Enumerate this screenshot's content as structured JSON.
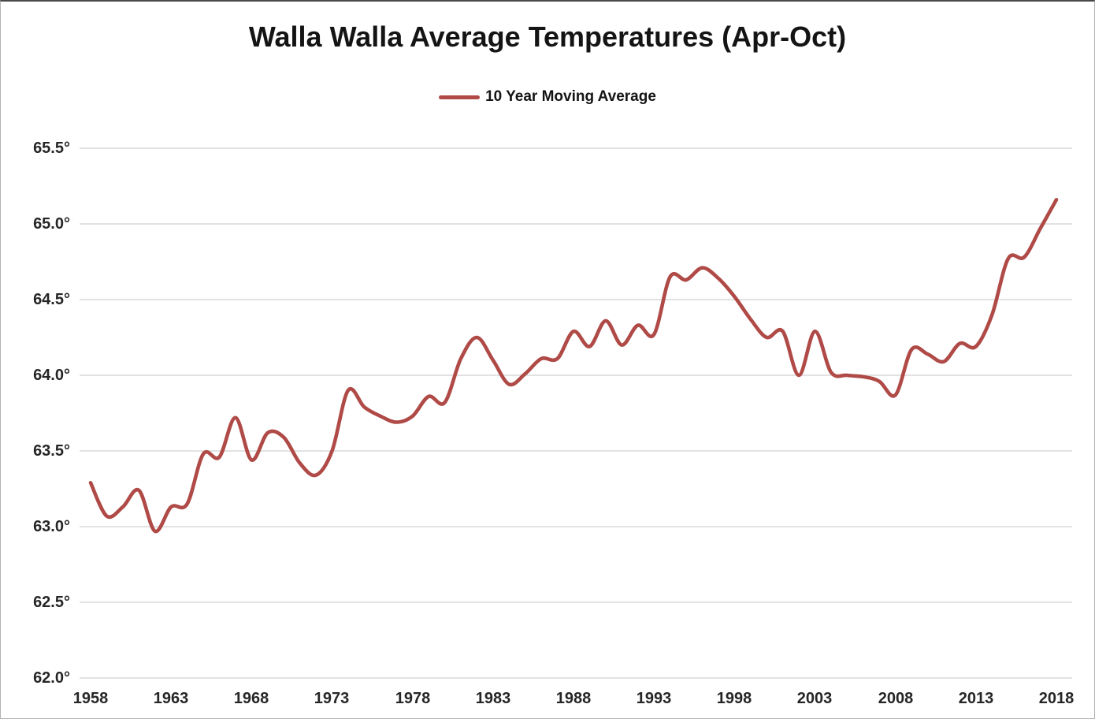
{
  "title": "Walla Walla Average Temperatures (Apr-Oct)",
  "legend": {
    "label": "10 Year Moving Average"
  },
  "chart_data": {
    "type": "line",
    "title": "Walla Walla Average Temperatures (Apr-Oct)",
    "xlabel": "",
    "ylabel": "",
    "xlim": [
      1958,
      2018
    ],
    "ylim": [
      62.0,
      65.5
    ],
    "grid": "horizontal",
    "legend_position": "top-center",
    "line_color": "#AF4A47",
    "gridline_color": "#D8D8D8",
    "smooth": true,
    "y_tick_labels": [
      "65.5°",
      "65.0°",
      "64.5°",
      "64.0°",
      "63.5°",
      "63.0°",
      "62.5°",
      "62.0°"
    ],
    "y_tick_values": [
      65.5,
      65.0,
      64.5,
      64.0,
      63.5,
      63.0,
      62.5,
      62.0
    ],
    "x_tick_labels": [
      "1958",
      "1963",
      "1968",
      "1973",
      "1978",
      "1983",
      "1988",
      "1993",
      "1998",
      "2003",
      "2008",
      "2013",
      "2018"
    ],
    "x_tick_values": [
      1958,
      1963,
      1968,
      1973,
      1978,
      1983,
      1988,
      1993,
      1998,
      2003,
      2008,
      2013,
      2018
    ],
    "series": [
      {
        "name": "10 Year Moving Average",
        "x": [
          1958,
          1959,
          1960,
          1961,
          1962,
          1963,
          1964,
          1965,
          1966,
          1967,
          1968,
          1969,
          1970,
          1971,
          1972,
          1973,
          1974,
          1975,
          1976,
          1977,
          1978,
          1979,
          1980,
          1981,
          1982,
          1983,
          1984,
          1985,
          1986,
          1987,
          1988,
          1989,
          1990,
          1991,
          1992,
          1993,
          1994,
          1995,
          1996,
          1997,
          1998,
          1999,
          2000,
          2001,
          2002,
          2003,
          2004,
          2005,
          2006,
          2007,
          2008,
          2009,
          2010,
          2011,
          2012,
          2013,
          2014,
          2015,
          2016,
          2017,
          2018
        ],
        "values": [
          63.29,
          63.07,
          63.13,
          63.24,
          62.97,
          63.13,
          63.15,
          63.48,
          63.46,
          63.72,
          63.44,
          63.62,
          63.59,
          63.42,
          63.34,
          63.5,
          63.9,
          63.79,
          63.73,
          63.69,
          63.73,
          63.86,
          63.82,
          64.11,
          64.25,
          64.1,
          63.94,
          64.01,
          64.11,
          64.11,
          64.29,
          64.19,
          64.36,
          64.2,
          64.33,
          64.27,
          64.65,
          64.63,
          64.71,
          64.64,
          64.52,
          64.37,
          64.25,
          64.29,
          64.0,
          64.29,
          64.02,
          64.0,
          63.99,
          63.96,
          63.87,
          64.17,
          64.14,
          64.09,
          64.21,
          64.19,
          64.4,
          64.77,
          64.78,
          64.97,
          65.16
        ]
      }
    ]
  }
}
